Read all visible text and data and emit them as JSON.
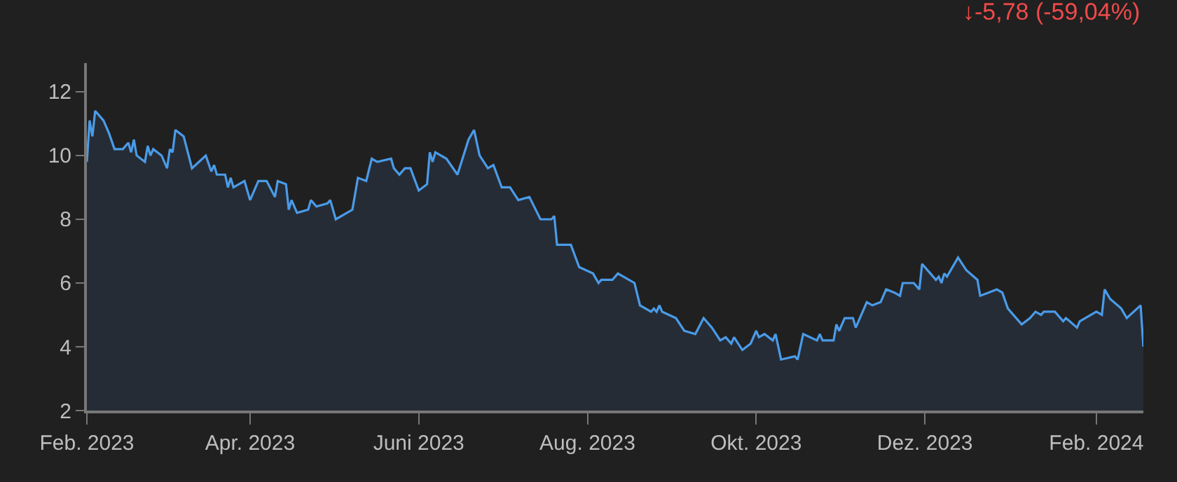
{
  "chart_data": {
    "type": "area",
    "color": "#4a9be8",
    "x": [
      "2023-02-01",
      "2023-02-02",
      "2023-02-03",
      "2023-02-04",
      "2023-02-07",
      "2023-02-09",
      "2023-02-11",
      "2023-02-14",
      "2023-02-16",
      "2023-02-17",
      "2023-02-18",
      "2023-02-19",
      "2023-02-22",
      "2023-02-23",
      "2023-02-24",
      "2023-02-25",
      "2023-02-28",
      "2023-03-02",
      "2023-03-03",
      "2023-03-04",
      "2023-03-05",
      "2023-03-08",
      "2023-03-11",
      "2023-03-16",
      "2023-03-18",
      "2023-03-19",
      "2023-03-20",
      "2023-03-23",
      "2023-03-24",
      "2023-03-25",
      "2023-03-26",
      "2023-03-30",
      "2023-04-01",
      "2023-04-04",
      "2023-04-07",
      "2023-04-10",
      "2023-04-11",
      "2023-04-14",
      "2023-04-15",
      "2023-04-16",
      "2023-04-18",
      "2023-04-22",
      "2023-04-23",
      "2023-04-25",
      "2023-04-29",
      "2023-04-30",
      "2023-05-02",
      "2023-05-08",
      "2023-05-10",
      "2023-05-13",
      "2023-05-15",
      "2023-05-17",
      "2023-05-22",
      "2023-05-23",
      "2023-05-25",
      "2023-05-27",
      "2023-05-29",
      "2023-06-01",
      "2023-06-04",
      "2023-06-05",
      "2023-06-06",
      "2023-06-07",
      "2023-06-11",
      "2023-06-15",
      "2023-06-19",
      "2023-06-21",
      "2023-06-23",
      "2023-06-26",
      "2023-06-28",
      "2023-07-01",
      "2023-07-04",
      "2023-07-07",
      "2023-07-11",
      "2023-07-15",
      "2023-07-19",
      "2023-07-20",
      "2023-07-21",
      "2023-07-26",
      "2023-07-29",
      "2023-08-03",
      "2023-08-05",
      "2023-08-06",
      "2023-08-10",
      "2023-08-12",
      "2023-08-18",
      "2023-08-20",
      "2023-08-24",
      "2023-08-25",
      "2023-08-26",
      "2023-08-27",
      "2023-08-28",
      "2023-09-02",
      "2023-09-05",
      "2023-09-09",
      "2023-09-12",
      "2023-09-15",
      "2023-09-18",
      "2023-09-20",
      "2023-09-22",
      "2023-09-23",
      "2023-09-26",
      "2023-09-29",
      "2023-10-01",
      "2023-10-02",
      "2023-10-04",
      "2023-10-07",
      "2023-10-08",
      "2023-10-10",
      "2023-10-15",
      "2023-10-16",
      "2023-10-18",
      "2023-10-23",
      "2023-10-24",
      "2023-10-25",
      "2023-10-29",
      "2023-10-30",
      "2023-10-31",
      "2023-11-02",
      "2023-11-05",
      "2023-11-06",
      "2023-11-10",
      "2023-11-12",
      "2023-11-15",
      "2023-11-17",
      "2023-11-20",
      "2023-11-22",
      "2023-11-23",
      "2023-11-27",
      "2023-11-29",
      "2023-11-30",
      "2023-12-03",
      "2023-12-05",
      "2023-12-06",
      "2023-12-07",
      "2023-12-08",
      "2023-12-09",
      "2023-12-13",
      "2023-12-16",
      "2023-12-20",
      "2023-12-21",
      "2023-12-24",
      "2023-12-27",
      "2023-12-29",
      "2023-12-31",
      "2024-01-05",
      "2024-01-08",
      "2024-01-10",
      "2024-01-12",
      "2024-01-13",
      "2024-01-17",
      "2024-01-20",
      "2024-01-21",
      "2024-01-25",
      "2024-01-26",
      "2024-02-01",
      "2024-02-03",
      "2024-02-04",
      "2024-02-06",
      "2024-02-10",
      "2024-02-12",
      "2024-02-17",
      "2024-02-18"
    ],
    "values": [
      9.8,
      11.1,
      10.6,
      11.4,
      11.1,
      10.7,
      10.2,
      10.2,
      10.4,
      10.1,
      10.5,
      10.0,
      9.8,
      10.3,
      10.0,
      10.2,
      10.0,
      9.6,
      10.2,
      10.1,
      10.8,
      10.6,
      9.6,
      10.0,
      9.5,
      9.7,
      9.4,
      9.4,
      9.0,
      9.3,
      9.0,
      9.2,
      8.6,
      9.2,
      9.2,
      8.7,
      9.2,
      9.1,
      8.3,
      8.6,
      8.2,
      8.3,
      8.6,
      8.4,
      8.5,
      8.6,
      8.0,
      8.3,
      9.3,
      9.2,
      9.9,
      9.8,
      9.9,
      9.6,
      9.4,
      9.6,
      9.6,
      8.9,
      9.1,
      10.1,
      9.8,
      10.1,
      9.9,
      9.4,
      10.5,
      10.8,
      10.0,
      9.6,
      9.7,
      9.0,
      9.0,
      8.6,
      8.7,
      8.0,
      8.0,
      8.1,
      7.2,
      7.2,
      6.5,
      6.3,
      6.0,
      6.1,
      6.1,
      6.3,
      6.0,
      5.3,
      5.1,
      5.2,
      5.1,
      5.3,
      5.1,
      4.9,
      4.5,
      4.4,
      4.9,
      4.6,
      4.2,
      4.3,
      4.1,
      4.3,
      3.9,
      4.1,
      4.5,
      4.3,
      4.4,
      4.2,
      4.4,
      3.6,
      3.7,
      3.6,
      4.4,
      4.2,
      4.4,
      4.2,
      4.2,
      4.7,
      4.5,
      4.9,
      4.9,
      4.6,
      5.4,
      5.3,
      5.4,
      5.8,
      5.7,
      5.6,
      6.0,
      6.0,
      5.8,
      6.6,
      6.3,
      6.1,
      6.2,
      6.0,
      6.3,
      6.2,
      6.8,
      6.4,
      6.1,
      5.6,
      5.7,
      5.8,
      5.7,
      5.2,
      4.7,
      4.9,
      5.1,
      5.0,
      5.1,
      5.1,
      4.8,
      4.9,
      4.6,
      4.8,
      5.1,
      5.0,
      5.8,
      5.5,
      5.2,
      4.9,
      5.3,
      4.0
    ],
    "xlim": [
      "2023-02-01",
      "2024-02-18"
    ],
    "xticks": [
      {
        "value": "2023-02-01",
        "label": "Feb. 2023"
      },
      {
        "value": "2023-04-01",
        "label": "Apr. 2023"
      },
      {
        "value": "2023-06-01",
        "label": "Juni 2023"
      },
      {
        "value": "2023-08-01",
        "label": "Aug. 2023"
      },
      {
        "value": "2023-10-01",
        "label": "Okt. 2023"
      },
      {
        "value": "2023-12-01",
        "label": "Dez. 2023"
      },
      {
        "value": "2024-02-01",
        "label": "Feb. 2024"
      }
    ],
    "ylim": [
      2,
      12.9
    ],
    "yticks": [
      2,
      4,
      6,
      8,
      10,
      12
    ],
    "annotations": [
      "↓-5,78 (-59,04%)"
    ]
  }
}
